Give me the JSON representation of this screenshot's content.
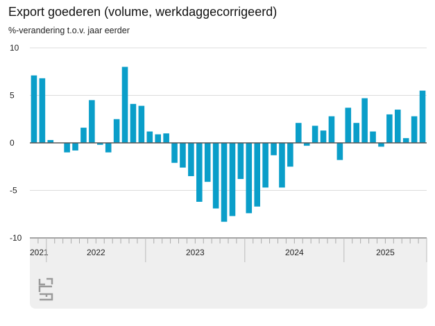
{
  "chart_data": {
    "type": "bar",
    "title": "Export goederen (volume, werkdaggecorrigeerd)",
    "ylabel": "%-verandering t.o.v. jaar eerder",
    "xlabel": "",
    "ylim": [
      -10,
      10
    ],
    "yticks": [
      "10",
      "5",
      "0",
      "-5",
      "-10"
    ],
    "year_labels": [
      "2021",
      "2022",
      "2023",
      "2024",
      "2025"
    ],
    "months_per_year": [
      2,
      12,
      12,
      12,
      10
    ],
    "values": [
      7.1,
      6.8,
      0.3,
      0.0,
      -1.0,
      -0.8,
      1.6,
      4.5,
      -0.2,
      -1.0,
      2.5,
      8.0,
      4.1,
      3.9,
      1.2,
      0.9,
      1.0,
      -2.1,
      -2.6,
      -3.5,
      -6.2,
      -4.1,
      -6.9,
      -8.3,
      -7.7,
      -3.8,
      -7.4,
      -6.7,
      -4.7,
      -1.3,
      -4.7,
      -2.5,
      2.1,
      -0.3,
      1.8,
      1.3,
      2.8,
      -1.8,
      3.7,
      2.1,
      4.7,
      1.2,
      -0.4,
      3.0,
      3.5,
      0.5,
      2.8,
      5.5
    ],
    "bar_color": "#0a9ec9",
    "grid": true
  }
}
